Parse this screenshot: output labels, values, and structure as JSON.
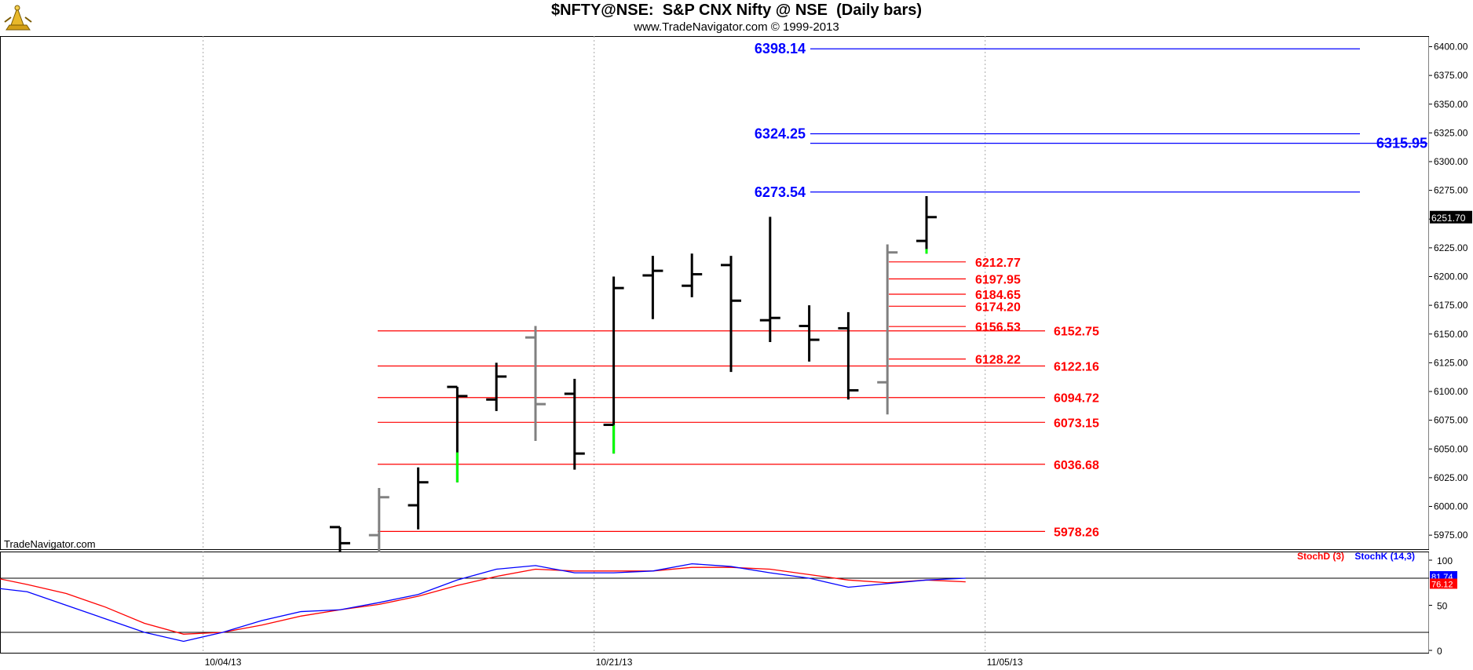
{
  "title": "$NFTY@NSE:  S&P CNX Nifty @ NSE  (Daily bars)",
  "subtitle": "www.TradeNavigator.com © 1999-2013",
  "watermark": "TradeNavigator.com",
  "colors": {
    "blue_level": "#0000ff",
    "red_level": "#ff0000",
    "bar_up": "#000000",
    "bar_gray": "#808080",
    "bar_green": "#00ff00",
    "stochK": "#0000ff",
    "stochD": "#ff0000"
  },
  "chart_data": {
    "type": "ohlc",
    "price_axis": {
      "ylim": [
        5960,
        6410
      ],
      "ticks": [
        "6400.00",
        "6375.00",
        "6350.00",
        "6325.00",
        "6300.00",
        "6275.00",
        "6250.00",
        "6225.00",
        "6200.00",
        "6175.00",
        "6150.00",
        "6125.00",
        "6100.00",
        "6075.00",
        "6050.00",
        "6025.00",
        "6000.00",
        "5975.00"
      ]
    },
    "last_price": "6251.70",
    "x_labels": [
      {
        "label": "10/04/13",
        "bar": -3.5
      },
      {
        "label": "10/21/13",
        "bar": 6.5
      },
      {
        "label": "11/05/13",
        "bar": 16.5
      }
    ],
    "bars": [
      {
        "o": 5982,
        "h": 5982,
        "l": 5960,
        "c": 5968,
        "color": "black"
      },
      {
        "o": 5975,
        "h": 6016,
        "l": 5960,
        "c": 6008,
        "color": "gray"
      },
      {
        "o": 6001,
        "h": 6034,
        "l": 5980,
        "c": 6021,
        "color": "black"
      },
      {
        "o": 6104,
        "h": 6104,
        "l": 6021,
        "c": 6096,
        "color": "black",
        "green_from": 6047
      },
      {
        "o": 6093,
        "h": 6125,
        "l": 6083,
        "c": 6113,
        "color": "black"
      },
      {
        "o": 6147,
        "h": 6157,
        "l": 6057,
        "c": 6089,
        "color": "gray"
      },
      {
        "o": 6098,
        "h": 6111,
        "l": 6032,
        "c": 6046,
        "color": "black"
      },
      {
        "o": 6071,
        "h": 6200,
        "l": 6046,
        "c": 6190,
        "color": "black",
        "green_from": 6071
      },
      {
        "o": 6201,
        "h": 6218,
        "l": 6163,
        "c": 6205,
        "color": "black"
      },
      {
        "o": 6192,
        "h": 6220,
        "l": 6182,
        "c": 6202,
        "color": "black"
      },
      {
        "o": 6210,
        "h": 6218,
        "l": 6117,
        "c": 6179,
        "color": "black"
      },
      {
        "o": 6162,
        "h": 6252,
        "l": 6143,
        "c": 6164,
        "color": "black"
      },
      {
        "o": 6157,
        "h": 6175,
        "l": 6126,
        "c": 6145,
        "color": "black"
      },
      {
        "o": 6155,
        "h": 6169,
        "l": 6093,
        "c": 6101,
        "color": "black"
      },
      {
        "o": 6108,
        "h": 6228,
        "l": 6080,
        "c": 6221,
        "color": "gray"
      },
      {
        "o": 6231,
        "h": 6270,
        "l": 6220,
        "c": 6251.7,
        "color": "black",
        "green_from": 6224
      }
    ],
    "blue_levels": [
      {
        "value": 6398.14,
        "label": "6398.14"
      },
      {
        "value": 6324.25,
        "label": "6324.25"
      },
      {
        "value": 6315.95,
        "label": "6315.95"
      },
      {
        "value": 6273.54,
        "label": "6273.54"
      }
    ],
    "red_levels_long": [
      {
        "value": 6152.75,
        "label": "6152.75"
      },
      {
        "value": 6122.16,
        "label": "6122.16"
      },
      {
        "value": 6094.72,
        "label": "6094.72"
      },
      {
        "value": 6073.15,
        "label": "6073.15"
      },
      {
        "value": 6036.68,
        "label": "6036.68"
      },
      {
        "value": 5978.26,
        "label": "5978.26"
      }
    ],
    "red_levels_short": [
      {
        "value": 6212.77,
        "label": "6212.77"
      },
      {
        "value": 6197.95,
        "label": "6197.95"
      },
      {
        "value": 6184.65,
        "label": "6184.65"
      },
      {
        "value": 6174.2,
        "label": "6174.20"
      },
      {
        "value": 6156.53,
        "label": "6156.53"
      },
      {
        "value": 6128.22,
        "label": "6128.22"
      }
    ],
    "stochastic": {
      "ylim": [
        0,
        100
      ],
      "ticks": [
        "100",
        "50",
        "0"
      ],
      "ref_levels": [
        80,
        20
      ],
      "legend_d": "StochD (3)",
      "legend_k": "StochK (14,3)",
      "value_d": "76.12",
      "value_k": "81.74",
      "x_bar": [
        -9,
        -8,
        -7,
        -6,
        -5,
        -4,
        -3,
        -2,
        -1,
        0,
        1,
        2,
        3,
        4,
        5,
        6,
        7,
        8,
        9,
        10,
        11,
        12,
        13,
        14,
        15,
        16
      ],
      "stochK": [
        70,
        65,
        50,
        35,
        20,
        10,
        20,
        33,
        43,
        45,
        53,
        62,
        78,
        90,
        94,
        86,
        86,
        88,
        96,
        93,
        86,
        80,
        70,
        74,
        78,
        80
      ],
      "stochD": [
        82,
        73,
        63,
        48,
        30,
        18,
        20,
        28,
        38,
        45,
        51,
        60,
        72,
        82,
        90,
        88,
        88,
        88,
        92,
        92,
        90,
        84,
        78,
        75,
        78,
        76
      ]
    }
  }
}
